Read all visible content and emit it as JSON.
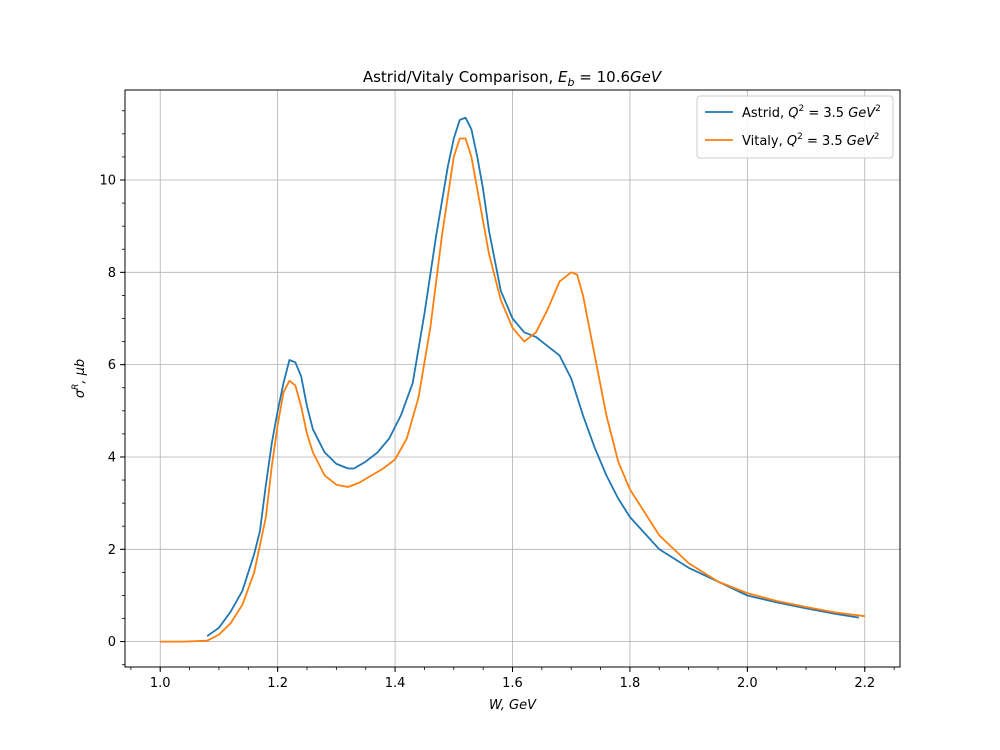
{
  "chart_data": {
    "type": "line",
    "title": "Astrid/Vitaly Comparison, E_b = 10.6GeV",
    "title_parts": {
      "main": "Astrid/Vitaly Comparison, ",
      "var": "E",
      "sub": "b",
      "rest": " = 10.6",
      "unit": "GeV"
    },
    "xlabel": "W, GeV",
    "ylabel": "σR, μb",
    "ylabel_parts": {
      "sym": "σ",
      "sup": "R",
      "rest": ", μb"
    },
    "xlim": [
      0.94,
      2.26
    ],
    "ylim": [
      -0.55,
      11.95
    ],
    "xticks": [
      1.0,
      1.2,
      1.4,
      1.6,
      1.8,
      2.0,
      2.2
    ],
    "xtick_labels": [
      "1.0",
      "1.2",
      "1.4",
      "1.6",
      "1.8",
      "2.0",
      "2.2"
    ],
    "yticks": [
      0,
      2,
      4,
      6,
      8,
      10
    ],
    "ytick_labels": [
      "0",
      "2",
      "4",
      "6",
      "8",
      "10"
    ],
    "grid": true,
    "legend_position": "top-right",
    "series": [
      {
        "name": "Astrid, Q² = 3.5 GeV²",
        "name_parts": {
          "pre": "Astrid, ",
          "q": "Q",
          "sup": "2",
          "mid": " = 3.5 ",
          "unit": "GeV",
          "usup": "2"
        },
        "color": "#1f77b4",
        "x": [
          1.08,
          1.1,
          1.12,
          1.14,
          1.16,
          1.17,
          1.18,
          1.19,
          1.2,
          1.21,
          1.22,
          1.23,
          1.24,
          1.25,
          1.26,
          1.28,
          1.3,
          1.32,
          1.33,
          1.35,
          1.37,
          1.39,
          1.41,
          1.43,
          1.45,
          1.47,
          1.49,
          1.5,
          1.51,
          1.52,
          1.53,
          1.54,
          1.55,
          1.56,
          1.58,
          1.6,
          1.62,
          1.64,
          1.66,
          1.68,
          1.7,
          1.72,
          1.74,
          1.76,
          1.78,
          1.8,
          1.85,
          1.9,
          1.95,
          2.0,
          2.05,
          2.1,
          2.15,
          2.19
        ],
        "y": [
          0.12,
          0.3,
          0.65,
          1.1,
          1.9,
          2.4,
          3.4,
          4.3,
          5.0,
          5.6,
          6.1,
          6.05,
          5.75,
          5.1,
          4.6,
          4.1,
          3.85,
          3.75,
          3.75,
          3.9,
          4.1,
          4.4,
          4.9,
          5.6,
          7.1,
          8.8,
          10.3,
          10.9,
          11.3,
          11.35,
          11.1,
          10.5,
          9.8,
          8.9,
          7.6,
          7.0,
          6.7,
          6.6,
          6.4,
          6.2,
          5.7,
          4.9,
          4.2,
          3.6,
          3.1,
          2.7,
          2.0,
          1.6,
          1.3,
          1.0,
          0.85,
          0.72,
          0.6,
          0.52
        ]
      },
      {
        "name": "Vitaly, Q² = 3.5 GeV²",
        "name_parts": {
          "pre": "Vitaly, ",
          "q": "Q",
          "sup": "2",
          "mid": " = 3.5 ",
          "unit": "GeV",
          "usup": "2"
        },
        "color": "#ff7f0e",
        "x": [
          1.0,
          1.04,
          1.08,
          1.1,
          1.12,
          1.14,
          1.16,
          1.18,
          1.19,
          1.2,
          1.21,
          1.22,
          1.23,
          1.24,
          1.25,
          1.26,
          1.28,
          1.3,
          1.32,
          1.34,
          1.36,
          1.38,
          1.4,
          1.42,
          1.44,
          1.46,
          1.48,
          1.5,
          1.51,
          1.52,
          1.53,
          1.54,
          1.56,
          1.58,
          1.6,
          1.62,
          1.64,
          1.66,
          1.68,
          1.7,
          1.71,
          1.72,
          1.74,
          1.76,
          1.78,
          1.8,
          1.85,
          1.9,
          1.95,
          2.0,
          2.05,
          2.1,
          2.15,
          2.2
        ],
        "y": [
          0.0,
          0.0,
          0.02,
          0.15,
          0.4,
          0.8,
          1.5,
          2.7,
          3.8,
          4.7,
          5.4,
          5.65,
          5.55,
          5.1,
          4.5,
          4.1,
          3.6,
          3.4,
          3.35,
          3.45,
          3.6,
          3.75,
          3.95,
          4.4,
          5.3,
          6.8,
          8.8,
          10.5,
          10.9,
          10.9,
          10.5,
          9.8,
          8.4,
          7.4,
          6.8,
          6.5,
          6.7,
          7.2,
          7.8,
          8.0,
          7.95,
          7.5,
          6.2,
          4.9,
          3.9,
          3.3,
          2.3,
          1.7,
          1.3,
          1.05,
          0.88,
          0.75,
          0.63,
          0.55
        ]
      }
    ]
  }
}
